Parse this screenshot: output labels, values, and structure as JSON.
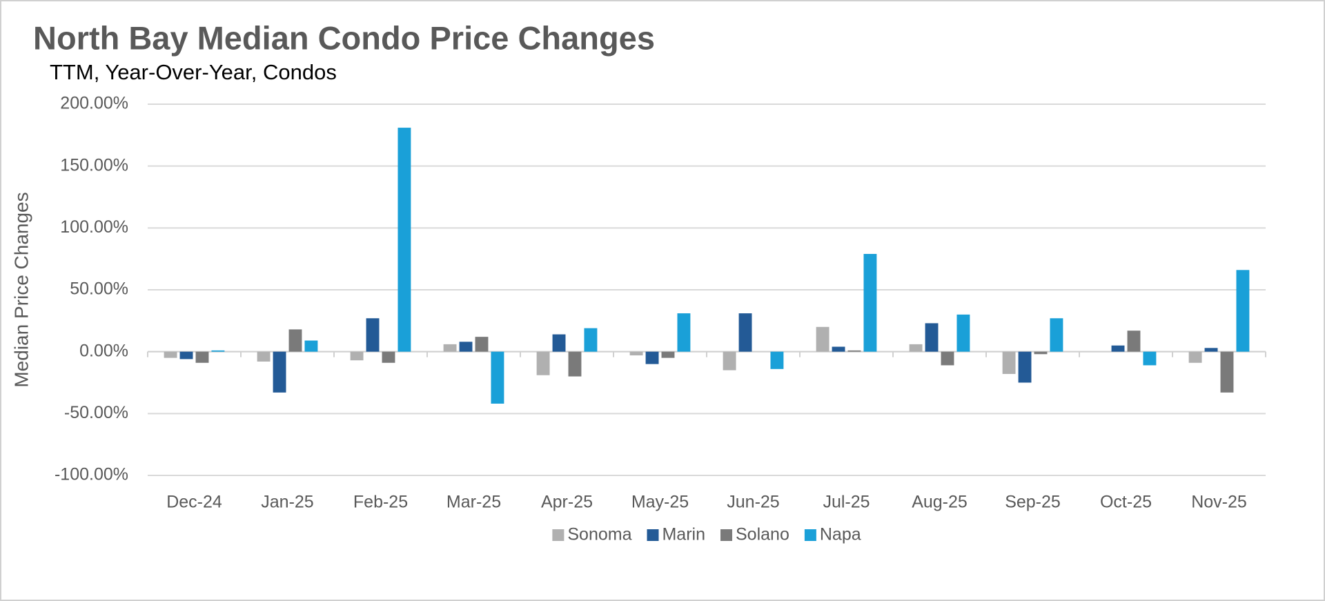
{
  "chart_data": {
    "type": "bar",
    "title": "North Bay Median Condo Price Changes",
    "subtitle": "TTM, Year-Over-Year,  Condos",
    "y_label": "Median Price Changes",
    "categories": [
      "Dec-24",
      "Jan-25",
      "Feb-25",
      "Mar-25",
      "Apr-25",
      "May-25",
      "Jun-25",
      "Jul-25",
      "Aug-25",
      "Sep-25",
      "Oct-25",
      "Nov-25"
    ],
    "series": [
      {
        "name": "Sonoma",
        "color": "#b0b0b0",
        "values": [
          -5,
          -8,
          -7,
          6,
          -19,
          -3,
          -15,
          20,
          6,
          -18,
          0,
          -9
        ]
      },
      {
        "name": "Marin",
        "color": "#235a96",
        "values": [
          -6,
          -33,
          27,
          8,
          14,
          -10,
          31,
          4,
          23,
          -25,
          5,
          3
        ]
      },
      {
        "name": "Solano",
        "color": "#7a7a7a",
        "values": [
          -9,
          18,
          -9,
          12,
          -20,
          -5,
          0,
          1,
          -11,
          -2,
          17,
          -33
        ]
      },
      {
        "name": "Napa",
        "color": "#1aa0d8",
        "values": [
          1,
          9,
          181,
          -42,
          19,
          31,
          -14,
          79,
          30,
          27,
          -11,
          66
        ]
      }
    ],
    "ylim": [
      -100,
      200
    ],
    "yticks": [
      {
        "value": -100,
        "label": "-100.00%"
      },
      {
        "value": -50,
        "label": "-50.00%"
      },
      {
        "value": 0,
        "label": "0.00%"
      },
      {
        "value": 50,
        "label": "50.00%"
      },
      {
        "value": 100,
        "label": "100.00%"
      },
      {
        "value": 150,
        "label": "150.00%"
      },
      {
        "value": 200,
        "label": "200.00%"
      }
    ],
    "grid": true,
    "legend": "bottom"
  }
}
